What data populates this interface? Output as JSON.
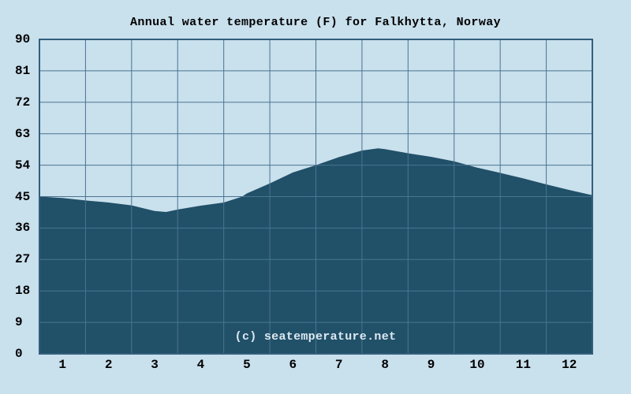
{
  "title": "Annual water temperature (F) for Falkhytta, Norway",
  "watermark": "(c) seatemperature.net",
  "colors": {
    "background": "#c9e0ed",
    "area_fill": "#215069",
    "gridline": "#4a7490",
    "border": "#325f7c",
    "text": "#000000",
    "watermark_text": "#dce8f0"
  },
  "chart_data": {
    "type": "area",
    "title": "Annual water temperature (F) for Falkhytta, Norway",
    "xlabel": "",
    "ylabel": "",
    "grid": true,
    "ylim": [
      0,
      90
    ],
    "y_tick_step": 9,
    "y_tick_labels": [
      "0",
      "9",
      "18",
      "27",
      "36",
      "45",
      "54",
      "63",
      "72",
      "81",
      "90"
    ],
    "x_tick_labels": [
      "1",
      "2",
      "3",
      "4",
      "5",
      "6",
      "7",
      "8",
      "9",
      "10",
      "11",
      "12"
    ],
    "months": [
      "1",
      "2",
      "3",
      "4",
      "5",
      "6",
      "7",
      "8",
      "9",
      "10",
      "11",
      "12"
    ],
    "monthly_temps_f": [
      44.6,
      43.3,
      40.8,
      42.4,
      45.9,
      51.9,
      56.3,
      58.6,
      56.4,
      53.3,
      50.2,
      46.9
    ],
    "min_temp_f": 40.6,
    "max_temp_f": 58.8,
    "curve": [
      [
        0,
        45.0
      ],
      [
        0.5,
        44.6
      ],
      [
        1,
        43.9
      ],
      [
        1.5,
        43.3
      ],
      [
        2,
        42.5
      ],
      [
        2.5,
        40.9
      ],
      [
        2.75,
        40.6
      ],
      [
        3,
        41.3
      ],
      [
        3.5,
        42.4
      ],
      [
        4,
        43.3
      ],
      [
        4.4,
        45.0
      ],
      [
        4.5,
        45.9
      ],
      [
        5,
        48.8
      ],
      [
        5.5,
        51.9
      ],
      [
        6,
        54.0
      ],
      [
        6.5,
        56.3
      ],
      [
        7,
        58.2
      ],
      [
        7.35,
        58.8
      ],
      [
        7.5,
        58.6
      ],
      [
        8,
        57.4
      ],
      [
        8.5,
        56.4
      ],
      [
        9,
        55.1
      ],
      [
        9.5,
        53.3
      ],
      [
        10,
        51.8
      ],
      [
        10.5,
        50.2
      ],
      [
        11,
        48.5
      ],
      [
        11.5,
        46.9
      ],
      [
        12,
        45.4
      ]
    ]
  }
}
